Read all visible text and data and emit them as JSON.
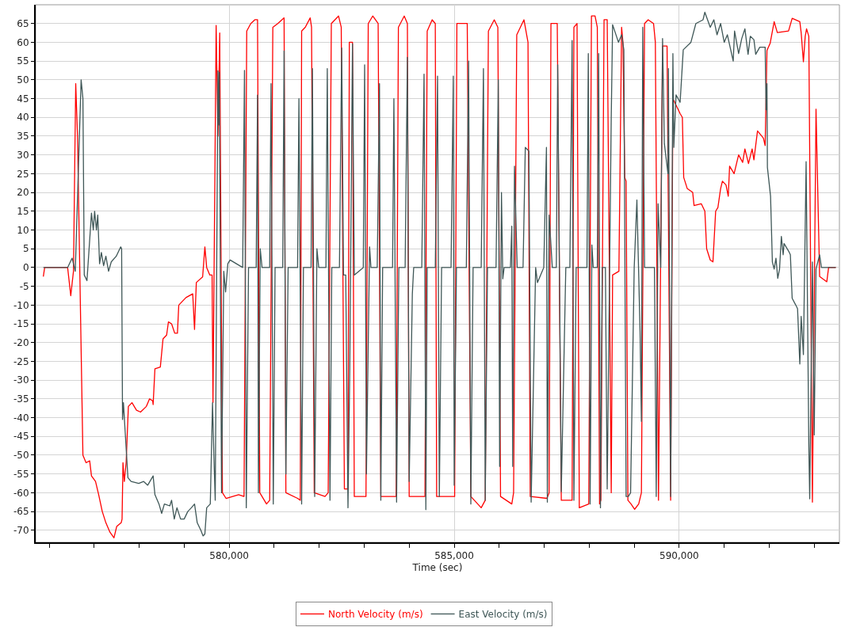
{
  "chart_data": {
    "type": "line",
    "xlabel": "Time (sec)",
    "xlim": [
      575700,
      593560
    ],
    "xticks": [
      {
        "value": 576000,
        "label": null
      },
      {
        "value": 577000,
        "label": null
      },
      {
        "value": 578000,
        "label": null
      },
      {
        "value": 579000,
        "label": null
      },
      {
        "value": 580000,
        "label": "580,000"
      },
      {
        "value": 581000,
        "label": null
      },
      {
        "value": 582000,
        "label": null
      },
      {
        "value": 583000,
        "label": null
      },
      {
        "value": 584000,
        "label": null
      },
      {
        "value": 585000,
        "label": "585,000"
      },
      {
        "value": 586000,
        "label": null
      },
      {
        "value": 587000,
        "label": null
      },
      {
        "value": 588000,
        "label": null
      },
      {
        "value": 589000,
        "label": null
      },
      {
        "value": 590000,
        "label": "590,000"
      },
      {
        "value": 591000,
        "label": null
      },
      {
        "value": 592000,
        "label": null
      },
      {
        "value": 593000,
        "label": null
      }
    ],
    "ylim": [
      -73.2,
      70
    ],
    "yticks": [
      -70,
      -65,
      -60,
      -55,
      -50,
      -45,
      -40,
      -35,
      -30,
      -25,
      -20,
      -15,
      -10,
      -5,
      0,
      5,
      10,
      15,
      20,
      25,
      30,
      35,
      40,
      45,
      50,
      55,
      60,
      65
    ],
    "grid": true,
    "legend": "bottom",
    "series": [
      {
        "name": "North Velocity (m/s)",
        "color": "#ff0000",
        "x": [
          575870,
          575900,
          576410,
          576480,
          576540,
          576590,
          576630,
          576750,
          576820,
          576900,
          576940,
          577030,
          577100,
          577180,
          577260,
          577350,
          577440,
          577500,
          577600,
          577620,
          577640,
          577670,
          577710,
          577760,
          577840,
          577940,
          578030,
          578160,
          578230,
          578300,
          578310,
          578350,
          578470,
          578530,
          578610,
          578650,
          578720,
          578790,
          578850,
          578880,
          579040,
          579190,
          579230,
          579270,
          579410,
          579460,
          579500,
          579570,
          579620,
          579640,
          579710,
          579750,
          579790,
          579850,
          579930,
          580210,
          580330,
          580390,
          580480,
          580570,
          580630,
          580680,
          580830,
          580900,
          580970,
          581080,
          581220,
          581260,
          581520,
          581580,
          581610,
          581690,
          581800,
          581830,
          581890,
          582130,
          582200,
          582270,
          582430,
          582490,
          582560,
          582640,
          582670,
          582740,
          582780,
          583040,
          583090,
          583190,
          583310,
          583370,
          583710,
          583760,
          583890,
          583960,
          584000,
          584350,
          584400,
          584510,
          584580,
          584610,
          585010,
          585060,
          585290,
          585370,
          585600,
          585690,
          585760,
          585890,
          585970,
          586030,
          586280,
          586320,
          586390,
          586550,
          586640,
          586690,
          587060,
          587110,
          587150,
          587290,
          587380,
          587620,
          587660,
          587730,
          587780,
          587990,
          588050,
          588130,
          588180,
          588230,
          588260,
          588330,
          588400,
          588490,
          588520,
          588660,
          588720,
          588750,
          588790,
          588820,
          588860,
          588930,
          589010,
          589100,
          589160,
          589230,
          589310,
          589430,
          589470,
          589540,
          589630,
          589730,
          589810,
          589860,
          589940,
          590020,
          590070,
          590100,
          590180,
          590300,
          590330,
          590490,
          590570,
          590610,
          590690,
          590750,
          590810,
          590860,
          590920,
          590960,
          591040,
          591090,
          591120,
          591220,
          591320,
          591410,
          591460,
          591540,
          591620,
          591660,
          591740,
          591870,
          591910,
          591950,
          592020,
          592110,
          592180,
          592430,
          592510,
          592680,
          592710,
          592760,
          592800,
          592830,
          592880,
          592960,
          593040,
          593120,
          593280,
          593320,
          593480
        ],
        "values": [
          -2.4,
          0,
          0,
          -7.5,
          -1,
          49,
          35,
          -50,
          -52,
          -51.5,
          -55.5,
          -57,
          -60.5,
          -65,
          -68,
          -70.5,
          -72,
          -69,
          -68,
          -67,
          -52,
          -57,
          -52,
          -37,
          -36,
          -38,
          -38.5,
          -37,
          -35,
          -35.5,
          -36.5,
          -27,
          -26.5,
          -19,
          -18,
          -14.5,
          -15,
          -17.5,
          -17.5,
          -10,
          -8,
          -7,
          -16.5,
          -4,
          -2.5,
          5.5,
          0,
          -2,
          -2,
          -36,
          64.5,
          35,
          62.5,
          -60,
          -61.5,
          -60.5,
          -61,
          63,
          65,
          66,
          66,
          -60,
          -63,
          -62,
          64,
          65,
          66.5,
          -60,
          -61.5,
          -62,
          63,
          64,
          66.5,
          64,
          -60,
          -61,
          -60,
          65,
          67,
          64,
          -59,
          -59,
          60,
          60,
          -61,
          -61,
          65,
          67,
          65,
          -61,
          -61,
          64,
          67,
          65,
          -61,
          -61,
          63,
          66,
          65,
          -61,
          -61,
          65,
          65,
          -61,
          -64,
          -62,
          63,
          66,
          64,
          -61,
          -63,
          -60,
          62,
          66,
          60,
          -61,
          -61.5,
          -60,
          65,
          65,
          -62,
          -62,
          64,
          65,
          -64,
          -63,
          67,
          67,
          64,
          -63,
          -62,
          66,
          66,
          -60,
          -2,
          -1,
          64,
          60,
          24,
          23,
          -62,
          -63,
          -64.4,
          -63,
          -60,
          65,
          66,
          65,
          60,
          -62,
          59,
          59,
          -62,
          45,
          43,
          41,
          40,
          24,
          21,
          20,
          16.5,
          17,
          15,
          5,
          2,
          1.5,
          15,
          16,
          21,
          23,
          22,
          19,
          27,
          25,
          30,
          28,
          31.6,
          27.7,
          31.6,
          28.7,
          36.4,
          34.5,
          32.5,
          57.8,
          59.7,
          65.5,
          62.6,
          63,
          66.4,
          65.5,
          62.6,
          54.8,
          61.6,
          63.6,
          61.6,
          -62.5,
          42.2,
          -2.4,
          -3.8,
          0,
          0
        ]
      },
      {
        "name": "East Velocity (m/s)",
        "color": "#3f5757",
        "x": [
          575870,
          576410,
          576510,
          576580,
          576710,
          576750,
          576780,
          576840,
          576940,
          576980,
          577010,
          577050,
          577080,
          577120,
          577160,
          577210,
          577260,
          577320,
          577380,
          577490,
          577590,
          577610,
          577630,
          577650,
          577680,
          577750,
          577820,
          577990,
          578100,
          578190,
          578310,
          578350,
          578440,
          578500,
          578560,
          578680,
          578720,
          578780,
          578840,
          578920,
          579000,
          579080,
          579160,
          579230,
          579290,
          579370,
          579420,
          579460,
          579500,
          579580,
          579630,
          579660,
          579690,
          579750,
          579770,
          579780,
          579830,
          579880,
          579920,
          579970,
          580020,
          580300,
          580340,
          580380,
          580430,
          580600,
          580630,
          580650,
          580690,
          580730,
          580900,
          580930,
          580980,
          581020,
          581190,
          581220,
          581260,
          581310,
          581520,
          581550,
          581610,
          581650,
          581820,
          581850,
          581900,
          581950,
          581990,
          582150,
          582180,
          582240,
          582280,
          582450,
          582500,
          582540,
          582590,
          582640,
          582680,
          582740,
          582780,
          582980,
          583010,
          583050,
          583120,
          583150,
          583290,
          583340,
          583370,
          583410,
          583630,
          583660,
          583720,
          583770,
          583910,
          583960,
          584000,
          584070,
          584100,
          584280,
          584330,
          584370,
          584400,
          584580,
          584630,
          584670,
          584720,
          584930,
          584980,
          585000,
          585050,
          585270,
          585320,
          585370,
          585420,
          585600,
          585650,
          585690,
          585740,
          585930,
          585980,
          586010,
          586050,
          586080,
          586110,
          586250,
          586280,
          586300,
          586340,
          586400,
          586530,
          586580,
          586660,
          586710,
          586810,
          586850,
          586990,
          587050,
          587070,
          587110,
          587180,
          587270,
          587300,
          587380,
          587480,
          587570,
          587620,
          587660,
          587710,
          587950,
          587980,
          588020,
          588060,
          588090,
          588180,
          588210,
          588250,
          588290,
          588360,
          588400,
          588490,
          588520,
          588650,
          588720,
          588770,
          588820,
          588870,
          588920,
          589000,
          589060,
          589130,
          589160,
          589190,
          589230,
          589450,
          589490,
          589530,
          589590,
          589630,
          589670,
          589750,
          589760,
          589810,
          589860,
          589880,
          589930,
          590020,
          590090,
          590260,
          590370,
          590530,
          590570,
          590690,
          590770,
          590840,
          590920,
          591000,
          591070,
          591200,
          591230,
          591320,
          591390,
          591460,
          591530,
          591580,
          591660,
          591700,
          591790,
          591910,
          591930,
          591950,
          591960,
          592030,
          592070,
          592110,
          592150,
          592190,
          592230,
          592270,
          592310,
          592330,
          592430,
          592470,
          592510,
          592590,
          592630,
          592680,
          592710,
          592760,
          592820,
          592880,
          592900,
          592960,
          593000,
          593040,
          593120,
          593160,
          593480
        ],
        "values": [
          0,
          0,
          2.5,
          -1,
          50,
          45,
          -2,
          -3.5,
          14.5,
          10,
          15,
          10,
          14,
          1,
          4,
          0.5,
          3,
          -1,
          1.5,
          3,
          5.5,
          5,
          -40.5,
          -36,
          -42,
          -56,
          -57,
          -57.5,
          -57,
          -58,
          -55.5,
          -60.5,
          -63,
          -65.5,
          -63,
          -63.5,
          -62,
          -67,
          -64,
          -67,
          -67,
          -65,
          -64,
          -63,
          -68,
          -70,
          -71.5,
          -71,
          -64,
          -63,
          -36,
          -50,
          -62,
          52.4,
          38,
          52,
          -60,
          -1,
          -6.5,
          1,
          2,
          0,
          52.5,
          -64,
          0,
          0,
          45.9,
          -60,
          5,
          0,
          0,
          49,
          -63,
          0,
          0,
          57.7,
          -55,
          0,
          0,
          45,
          -63,
          0,
          0,
          53,
          -61,
          5,
          0,
          0,
          53,
          -62,
          0,
          0,
          58.5,
          -2,
          -2,
          -64,
          -27,
          59.6,
          -2,
          0,
          54,
          -55,
          5.5,
          0,
          0,
          49,
          -62,
          0,
          0,
          45,
          -62.5,
          0,
          0,
          56,
          -57,
          -7,
          0,
          0,
          51.5,
          -64.5,
          0,
          0,
          51,
          -61,
          0,
          0,
          51,
          -58,
          0,
          0,
          55,
          -63,
          0,
          0,
          53,
          -62,
          0,
          0,
          50,
          -53,
          20,
          -3,
          0,
          0,
          11,
          -53,
          27,
          0,
          0,
          32,
          31,
          -62.5,
          0,
          -4,
          0,
          32,
          -62.5,
          14,
          0,
          0,
          54,
          -59.7,
          0,
          0,
          60.5,
          -62,
          0,
          0,
          57,
          -63,
          6,
          0,
          0,
          57,
          -64,
          0,
          0,
          -59,
          40,
          64.7,
          60,
          62,
          58,
          -61,
          -61,
          -60,
          0,
          18,
          -17,
          -41,
          64,
          0,
          0,
          -61,
          17,
          0,
          61,
          33,
          25,
          53,
          -61,
          57,
          32,
          46,
          44,
          58,
          60,
          65,
          66,
          68,
          64,
          66,
          62,
          65,
          60,
          62,
          55,
          63,
          57,
          61,
          63.6,
          56.8,
          61.6,
          60.7,
          56.8,
          58.7,
          58.7,
          42,
          49,
          26.7,
          19,
          1.5,
          -0.4,
          2.5,
          -2.9,
          -0.4,
          8.3,
          3.4,
          6.4,
          4.4,
          3.4,
          -8.2,
          -10,
          -11,
          -25.7,
          -13,
          -23.2,
          28.2,
          -47,
          -61.6,
          1.5,
          -44.6,
          -0.4,
          3.4,
          0,
          0
        ]
      }
    ]
  }
}
